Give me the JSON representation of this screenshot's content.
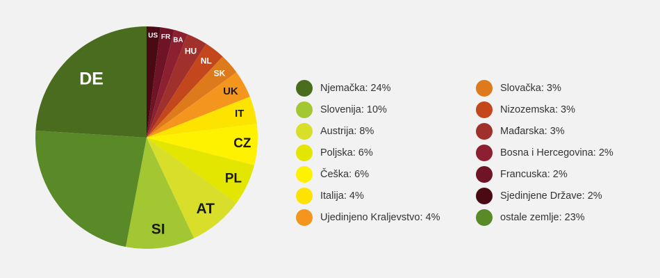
{
  "chart_data": {
    "type": "pie",
    "start": "12 o'clock",
    "direction": "clockwise",
    "slices": [
      {
        "label": "Sjedinjene Države",
        "short": "US",
        "value": 2,
        "legend": "Sjedinjene Države: 2%",
        "color": "#4a0a14"
      },
      {
        "label": "Francuska",
        "short": "FR",
        "value": 2,
        "legend": "Francuska: 2%",
        "color": "#6e1426"
      },
      {
        "label": "Bosna i Hercegovina",
        "short": "BA",
        "value": 2,
        "legend": "Bosna i Hercegovina: 2%",
        "color": "#8c2030"
      },
      {
        "label": "Mađarska",
        "short": "HU",
        "value": 3,
        "legend": "Mađarska: 3%",
        "color": "#a0302c"
      },
      {
        "label": "Nizozemska",
        "short": "NL",
        "value": 3,
        "legend": "Nizozemska: 3%",
        "color": "#c4461c"
      },
      {
        "label": "Slovačka",
        "short": "SK",
        "value": 3,
        "legend": "Slovačka: 3%",
        "color": "#dd7a1c"
      },
      {
        "label": "Ujedinjeno Kraljevstvo",
        "short": "UK",
        "value": 4,
        "legend": "Ujedinjeno Kraljevstvo: 4%",
        "color": "#f4961e"
      },
      {
        "label": "Italija",
        "short": "IT",
        "value": 4,
        "legend": "Italija: 4%",
        "color": "#fde300"
      },
      {
        "label": "Češka",
        "short": "CZ",
        "value": 6,
        "legend": "Češka: 6%",
        "color": "#fff200"
      },
      {
        "label": "Poljska",
        "short": "PL",
        "value": 6,
        "legend": "Poljska: 6%",
        "color": "#e2e600"
      },
      {
        "label": "Austrija",
        "short": "AT",
        "value": 8,
        "legend": "Austrija: 8%",
        "color": "#d8de2a"
      },
      {
        "label": "Slovenija",
        "short": "SI",
        "value": 10,
        "legend": "Slovenija: 10%",
        "color": "#a2c733"
      },
      {
        "label": "ostale zemlje",
        "short": "",
        "value": 23,
        "legend": "ostale zemlje: 23%",
        "color": "#5a8a28"
      },
      {
        "label": "Njemačka",
        "short": "DE",
        "value": 24,
        "legend": "Njemačka: 24%",
        "color": "#4a6c1e"
      }
    ],
    "legend_columns": [
      [
        "Njemačka",
        "Slovenija",
        "Austrija",
        "Poljska",
        "Češka",
        "Italija",
        "Ujedinjeno Kraljevstvo"
      ],
      [
        "Slovačka",
        "Nizozemska",
        "Mađarska",
        "Bosna i Hercegovina",
        "Francuska",
        "Sjedinjene Države",
        "ostale zemlje"
      ]
    ],
    "legend_placement": "right",
    "title": "",
    "label_colors": {
      "on_dark": "#ffffff",
      "on_light": "#1a1a1a"
    }
  }
}
